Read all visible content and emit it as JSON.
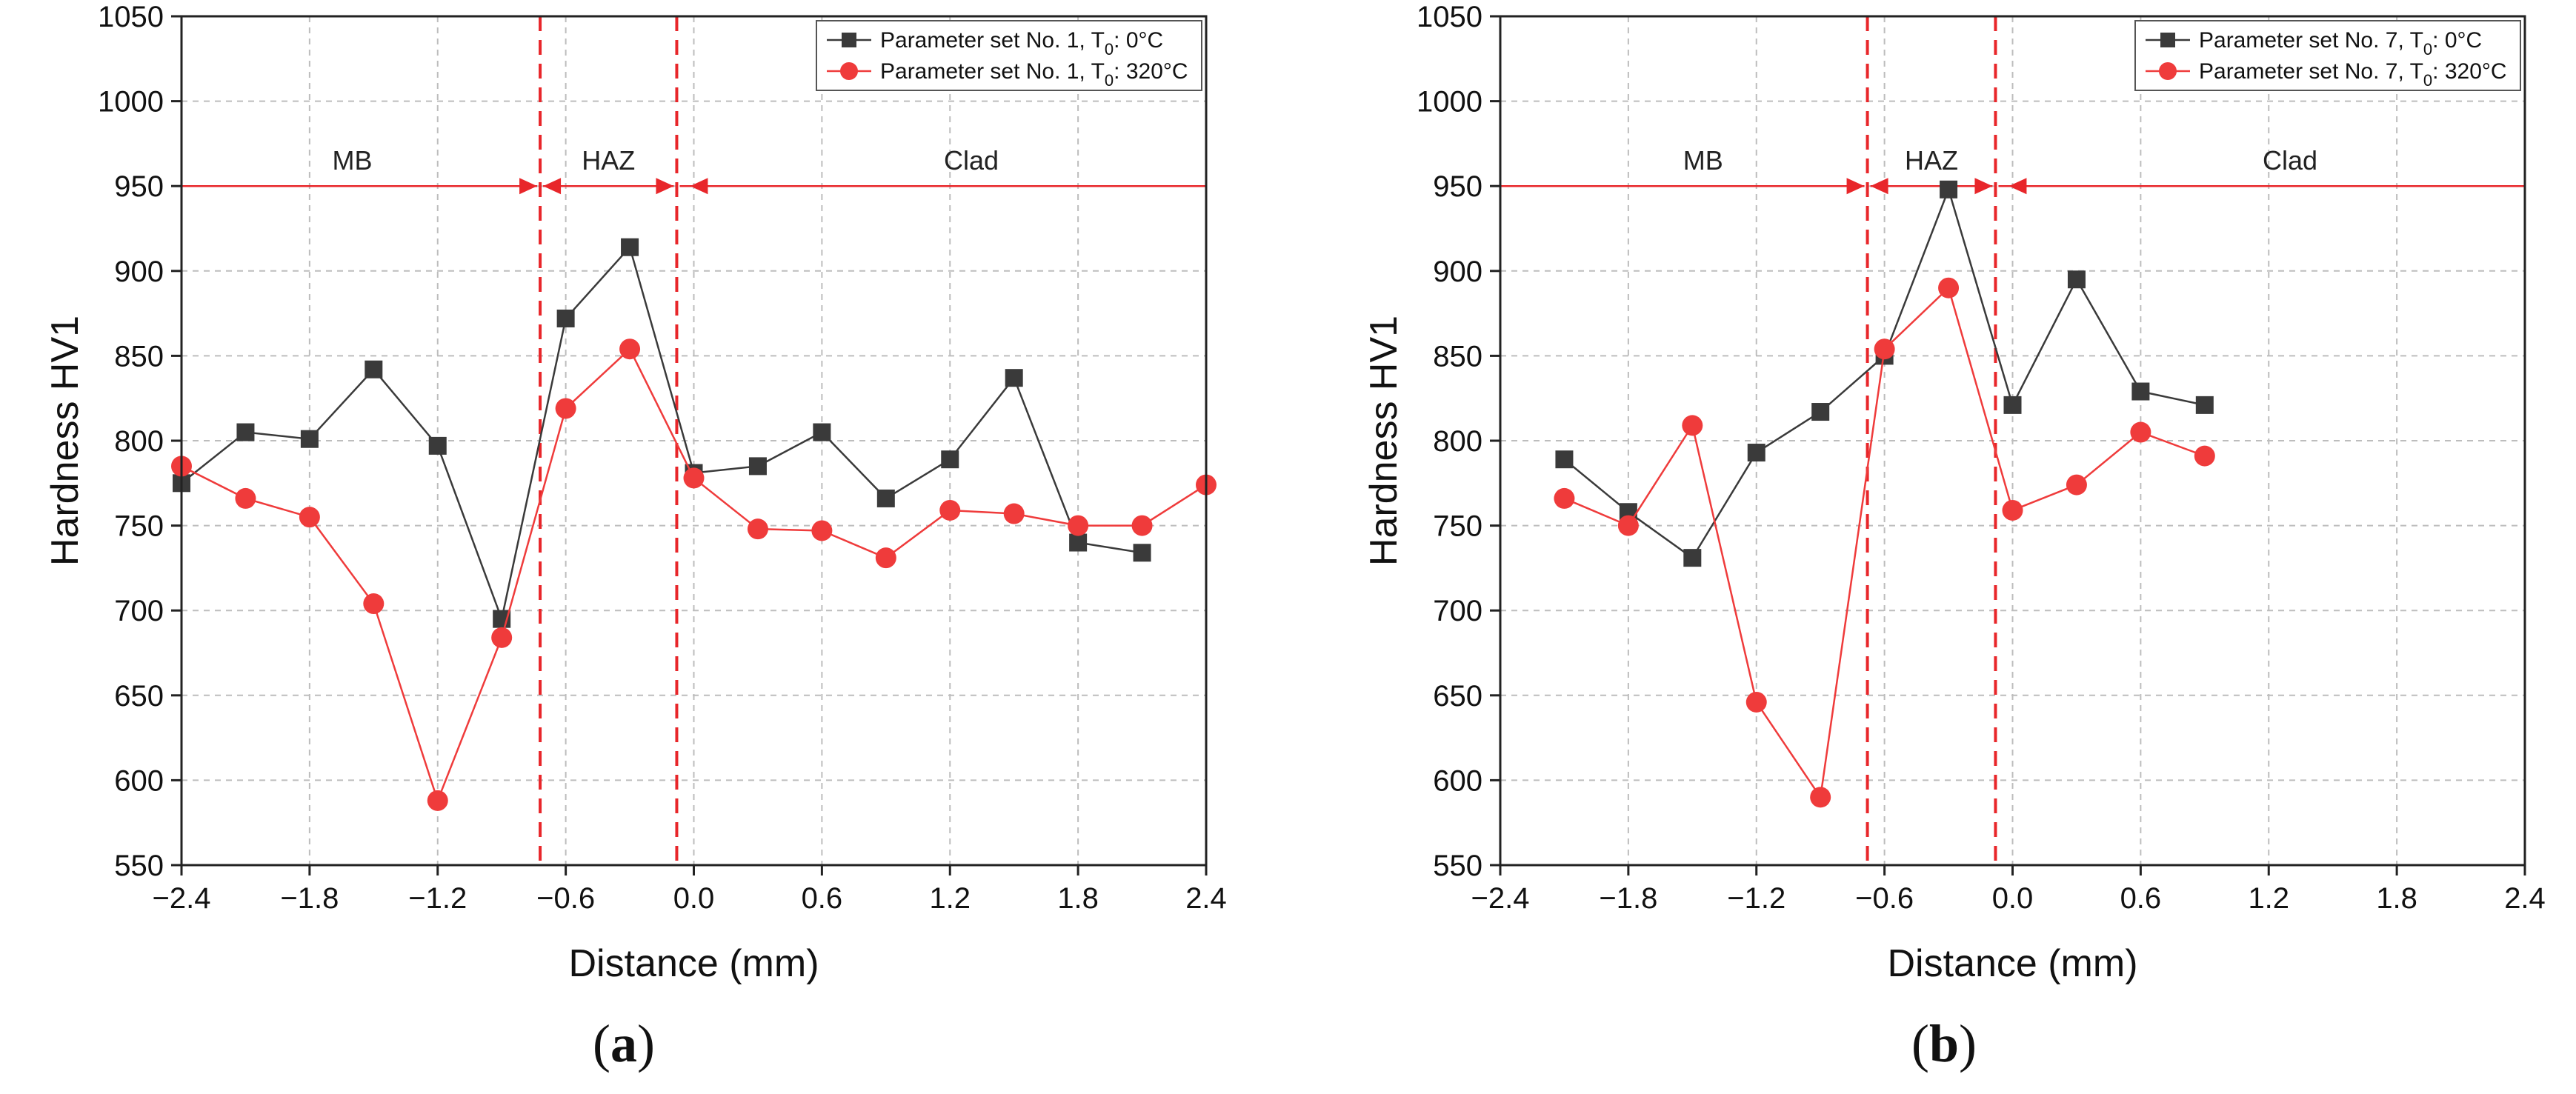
{
  "colors": {
    "series_0C": "#3a3a3a",
    "series_320C": "#ef3b3b",
    "annotation": "#e8262a",
    "grid": "#bdbdbd"
  },
  "chart_data": [
    {
      "type": "line",
      "panel_label": "a",
      "xlabel": "Distance (mm)",
      "ylabel": "Hardness HV1",
      "xlim": [
        -2.4,
        2.4
      ],
      "ylim": [
        550,
        1050
      ],
      "x_ticks": [
        "−2.4",
        "−1.8",
        "−1.2",
        "−0.6",
        "0.0",
        "0.6",
        "1.2",
        "1.8",
        "2.4"
      ],
      "y_ticks": [
        "550",
        "600",
        "650",
        "700",
        "750",
        "800",
        "850",
        "900",
        "950",
        "1000",
        "1050"
      ],
      "grid": true,
      "legend_position": "top-right",
      "series": [
        {
          "name": "Parameter set No. 1, T₀: 0°C",
          "marker": "square",
          "x": [
            -2.4,
            -2.1,
            -1.8,
            -1.5,
            -1.2,
            -0.9,
            -0.6,
            -0.3,
            0.0,
            0.3,
            0.6,
            0.9,
            1.2,
            1.5,
            1.8,
            2.1
          ],
          "y": [
            775,
            805,
            801,
            842,
            797,
            695,
            872,
            914,
            781,
            785,
            805,
            766,
            789,
            837,
            740,
            734
          ]
        },
        {
          "name": "Parameter set No. 1, T₀: 320°C",
          "marker": "circle",
          "x": [
            -2.4,
            -2.1,
            -1.8,
            -1.5,
            -1.2,
            -0.9,
            -0.6,
            -0.3,
            0.0,
            0.3,
            0.6,
            0.9,
            1.2,
            1.5,
            1.8,
            2.1,
            2.4
          ],
          "y": [
            785,
            766,
            755,
            704,
            588,
            684,
            819,
            854,
            778,
            748,
            747,
            731,
            759,
            757,
            750,
            750,
            774
          ]
        }
      ],
      "boundaries": [
        -0.72,
        -0.08
      ],
      "zone_line_y": 950,
      "zones": [
        {
          "label": "MB",
          "x": -1.6
        },
        {
          "label": "HAZ",
          "x": -0.4
        },
        {
          "label": "Clad",
          "x": 1.3
        }
      ]
    },
    {
      "type": "line",
      "panel_label": "b",
      "xlabel": "Distance (mm)",
      "ylabel": "Hardness HV1",
      "xlim": [
        -2.4,
        2.4
      ],
      "ylim": [
        550,
        1050
      ],
      "x_ticks": [
        "−2.4",
        "−1.8",
        "−1.2",
        "−0.6",
        "0.0",
        "0.6",
        "1.2",
        "1.8",
        "2.4"
      ],
      "y_ticks": [
        "550",
        "600",
        "650",
        "700",
        "750",
        "800",
        "850",
        "900",
        "950",
        "1000",
        "1050"
      ],
      "grid": true,
      "legend_position": "top-right",
      "series": [
        {
          "name": "Parameter set No. 7, T₀: 0°C",
          "marker": "square",
          "x": [
            -2.1,
            -1.8,
            -1.5,
            -1.2,
            -0.9,
            -0.6,
            -0.3,
            0.0,
            0.3,
            0.6,
            0.9
          ],
          "y": [
            789,
            758,
            731,
            793,
            817,
            850,
            948,
            821,
            895,
            829,
            821
          ]
        },
        {
          "name": "Parameter set No. 7, T₀: 320°C",
          "marker": "circle",
          "x": [
            -2.1,
            -1.8,
            -1.5,
            -1.2,
            -0.9,
            -0.6,
            -0.3,
            0.0,
            0.3,
            0.6,
            0.9
          ],
          "y": [
            766,
            750,
            809,
            646,
            590,
            854,
            890,
            759,
            774,
            805,
            791
          ]
        }
      ],
      "boundaries": [
        -0.68,
        -0.08
      ],
      "zone_line_y": 950,
      "zones": [
        {
          "label": "MB",
          "x": -1.45
        },
        {
          "label": "HAZ",
          "x": -0.38
        },
        {
          "label": "Clad",
          "x": 1.3
        }
      ]
    }
  ]
}
